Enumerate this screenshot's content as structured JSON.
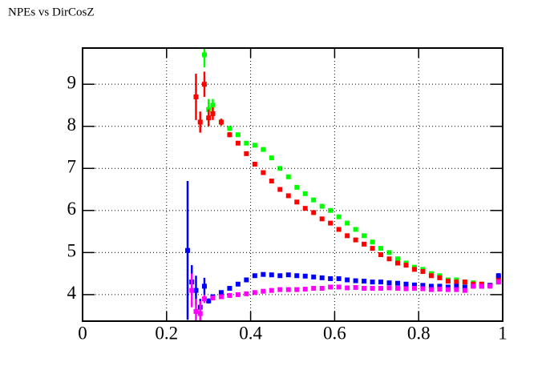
{
  "chart_data": {
    "type": "scatter",
    "title": "NPEs vs DirCosZ",
    "xlim": [
      0,
      1
    ],
    "ylim": [
      3.37,
      9.86
    ],
    "xticks": [
      0,
      0.2,
      0.4,
      0.6,
      0.8,
      1
    ],
    "yticks": [
      4,
      5,
      6,
      7,
      8,
      9
    ],
    "grid": true,
    "series": [
      {
        "color": "#00ff00",
        "x": [
          0.29,
          0.3,
          0.31,
          0.33,
          0.35,
          0.37,
          0.39,
          0.41,
          0.43,
          0.45,
          0.47,
          0.49,
          0.51,
          0.53,
          0.55,
          0.57,
          0.59,
          0.61,
          0.63,
          0.65,
          0.67,
          0.69,
          0.71,
          0.73,
          0.75,
          0.77,
          0.79,
          0.81,
          0.83,
          0.85,
          0.87,
          0.89,
          0.91,
          0.93,
          0.95,
          0.97,
          0.99
        ],
        "values": [
          9.7,
          8.4,
          8.5,
          8.1,
          7.95,
          7.8,
          7.6,
          7.55,
          7.45,
          7.25,
          7.0,
          6.8,
          6.55,
          6.4,
          6.25,
          6.1,
          6.0,
          5.85,
          5.7,
          5.55,
          5.4,
          5.25,
          5.1,
          5.0,
          4.85,
          4.75,
          4.65,
          4.6,
          4.5,
          4.45,
          4.35,
          4.35,
          4.3,
          4.28,
          4.25,
          4.22,
          4.3
        ],
        "errors": [
          0.3,
          0.25,
          0.15,
          0.08,
          0.06,
          0.05,
          0.05,
          0.05,
          0.04,
          0.04,
          0.04,
          0.04,
          0.04,
          0.04,
          0.04,
          0.04,
          0.04,
          0.04,
          0.04,
          0.04,
          0.04,
          0.04,
          0.04,
          0.04,
          0.04,
          0.04,
          0.04,
          0.04,
          0.04,
          0.04,
          0.04,
          0.04,
          0.04,
          0.04,
          0.04,
          0.04,
          0.06
        ]
      },
      {
        "color": "#ff0000",
        "x": [
          0.27,
          0.28,
          0.29,
          0.3,
          0.31,
          0.33,
          0.35,
          0.37,
          0.39,
          0.41,
          0.43,
          0.45,
          0.47,
          0.49,
          0.51,
          0.53,
          0.55,
          0.57,
          0.59,
          0.61,
          0.63,
          0.65,
          0.67,
          0.69,
          0.71,
          0.73,
          0.75,
          0.77,
          0.79,
          0.81,
          0.83,
          0.85,
          0.87,
          0.89,
          0.91,
          0.93,
          0.95,
          0.97,
          0.99
        ],
        "values": [
          8.7,
          8.1,
          9.0,
          8.2,
          8.3,
          8.1,
          7.8,
          7.6,
          7.35,
          7.1,
          6.9,
          6.7,
          6.5,
          6.35,
          6.2,
          6.05,
          5.95,
          5.8,
          5.7,
          5.55,
          5.4,
          5.3,
          5.2,
          5.1,
          4.95,
          4.85,
          4.75,
          4.7,
          4.6,
          4.55,
          4.45,
          4.4,
          4.32,
          4.3,
          4.3,
          4.25,
          4.25,
          4.22,
          4.4
        ],
        "errors": [
          0.55,
          0.25,
          0.3,
          0.2,
          0.15,
          0.08,
          0.06,
          0.05,
          0.05,
          0.05,
          0.04,
          0.04,
          0.04,
          0.04,
          0.04,
          0.04,
          0.04,
          0.04,
          0.04,
          0.04,
          0.04,
          0.04,
          0.04,
          0.04,
          0.04,
          0.04,
          0.04,
          0.04,
          0.04,
          0.04,
          0.04,
          0.04,
          0.04,
          0.04,
          0.04,
          0.04,
          0.04,
          0.04,
          0.06
        ]
      },
      {
        "color": "#0000ff",
        "x": [
          0.25,
          0.26,
          0.27,
          0.28,
          0.29,
          0.3,
          0.31,
          0.33,
          0.35,
          0.37,
          0.39,
          0.41,
          0.43,
          0.45,
          0.47,
          0.49,
          0.51,
          0.53,
          0.55,
          0.57,
          0.59,
          0.61,
          0.63,
          0.65,
          0.67,
          0.69,
          0.71,
          0.73,
          0.75,
          0.77,
          0.79,
          0.81,
          0.83,
          0.85,
          0.87,
          0.89,
          0.91,
          0.93,
          0.95,
          0.97,
          0.99
        ],
        "values": [
          5.05,
          4.3,
          4.1,
          3.7,
          4.2,
          3.85,
          3.95,
          4.05,
          4.15,
          4.25,
          4.35,
          4.45,
          4.48,
          4.47,
          4.45,
          4.47,
          4.45,
          4.44,
          4.42,
          4.4,
          4.38,
          4.38,
          4.35,
          4.33,
          4.32,
          4.3,
          4.3,
          4.28,
          4.27,
          4.25,
          4.23,
          4.22,
          4.2,
          4.2,
          4.18,
          4.2,
          4.18,
          4.2,
          4.2,
          4.22,
          4.45
        ],
        "errors": [
          1.65,
          0.4,
          0.35,
          0.2,
          0.2,
          0.06,
          0.05,
          0.04,
          0.04,
          0.04,
          0.04,
          0.04,
          0.04,
          0.04,
          0.04,
          0.04,
          0.04,
          0.04,
          0.04,
          0.04,
          0.04,
          0.04,
          0.04,
          0.04,
          0.04,
          0.04,
          0.04,
          0.04,
          0.04,
          0.04,
          0.04,
          0.04,
          0.04,
          0.04,
          0.04,
          0.04,
          0.04,
          0.04,
          0.04,
          0.04,
          0.06
        ]
      },
      {
        "color": "#ff00ff",
        "x": [
          0.26,
          0.27,
          0.28,
          0.29,
          0.31,
          0.33,
          0.35,
          0.37,
          0.39,
          0.41,
          0.43,
          0.45,
          0.47,
          0.49,
          0.51,
          0.53,
          0.55,
          0.57,
          0.59,
          0.61,
          0.63,
          0.65,
          0.67,
          0.69,
          0.71,
          0.73,
          0.75,
          0.77,
          0.79,
          0.81,
          0.83,
          0.85,
          0.87,
          0.89,
          0.91,
          0.93,
          0.95,
          0.97,
          0.99
        ],
        "values": [
          4.1,
          3.6,
          3.55,
          3.9,
          3.92,
          3.95,
          3.98,
          4.0,
          4.02,
          4.05,
          4.08,
          4.1,
          4.12,
          4.12,
          4.12,
          4.13,
          4.15,
          4.15,
          4.18,
          4.18,
          4.16,
          4.17,
          4.15,
          4.15,
          4.15,
          4.16,
          4.15,
          4.14,
          4.15,
          4.14,
          4.12,
          4.13,
          4.12,
          4.12,
          4.1,
          4.2,
          4.2,
          4.2,
          4.3
        ],
        "errors": [
          0.4,
          0.3,
          0.3,
          0.1,
          0.05,
          0.04,
          0.04,
          0.04,
          0.04,
          0.04,
          0.04,
          0.04,
          0.04,
          0.04,
          0.04,
          0.04,
          0.04,
          0.04,
          0.04,
          0.04,
          0.04,
          0.04,
          0.04,
          0.04,
          0.04,
          0.04,
          0.04,
          0.04,
          0.04,
          0.04,
          0.04,
          0.04,
          0.04,
          0.04,
          0.04,
          0.04,
          0.04,
          0.04,
          0.05
        ]
      }
    ]
  }
}
